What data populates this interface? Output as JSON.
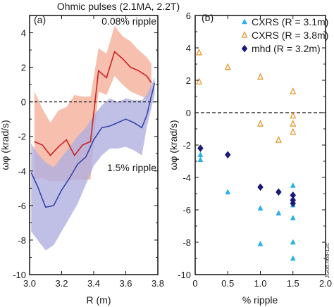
{
  "chart_data": [
    {
      "type": "area",
      "title": "Ohmic pulses (2.1MA, 2.2T)",
      "panel_label": "(a)",
      "xlabel": "R (m)",
      "ylabel": "ωφ (krad/s)",
      "xlim": [
        3.0,
        3.8
      ],
      "ylim": [
        -10,
        5
      ],
      "xticks": [
        "3.0",
        "3.2",
        "3.4",
        "3.6",
        "3.8"
      ],
      "yticks": [
        "-10",
        "-8",
        "-6",
        "-4",
        "-2",
        "0",
        "2",
        "4"
      ],
      "zero_line": "dashed",
      "annotations": [
        {
          "text": "0.08% ripple",
          "placement": "top-right"
        },
        {
          "text": "1.5% ripple",
          "placement": "center-right"
        }
      ],
      "series": [
        {
          "name": "0.08% ripple",
          "color": "#cc2222",
          "band_color": "#f4b4a0",
          "x": [
            3.03,
            3.08,
            3.13,
            3.18,
            3.23,
            3.28,
            3.33,
            3.38,
            3.43,
            3.48,
            3.53,
            3.58,
            3.63,
            3.68,
            3.73,
            3.76
          ],
          "values": [
            -2.3,
            -2.5,
            -3.1,
            -2.6,
            -2.2,
            -3.1,
            -2.5,
            -2.3,
            1.8,
            1.4,
            2.9,
            2.5,
            2.0,
            1.8,
            1.5,
            1.1
          ],
          "upper": [
            0.6,
            -0.4,
            -1.2,
            -0.5,
            -0.3,
            0.4,
            0.3,
            0.3,
            3.1,
            2.8,
            4.4,
            3.8,
            3.5,
            3.0,
            2.6,
            2.2
          ],
          "lower": [
            -4.5,
            -4.4,
            -4.6,
            -4.6,
            -4.6,
            -4.5,
            -4.5,
            -4.5,
            0.6,
            0.4,
            1.5,
            1.0,
            0.6,
            0.4,
            0.2,
            0.0
          ]
        },
        {
          "name": "1.5% ripple",
          "color": "#3344aa",
          "band_color": "#b0b0e0",
          "x": [
            3.01,
            3.05,
            3.1,
            3.15,
            3.2,
            3.25,
            3.3,
            3.35,
            3.4,
            3.45,
            3.5,
            3.55,
            3.6,
            3.65,
            3.7,
            3.73,
            3.78
          ],
          "values": [
            -4.1,
            -4.9,
            -6.1,
            -6.0,
            -5.1,
            -4.4,
            -3.6,
            -3.2,
            -2.2,
            -1.5,
            -1.4,
            -1.2,
            -1.0,
            -1.2,
            -1.5,
            -0.8,
            1.1
          ],
          "upper": [
            -2.4,
            -3.0,
            -3.5,
            -3.8,
            -3.2,
            -2.6,
            -2.0,
            -1.5,
            -0.8,
            -0.2,
            0.2,
            0.0,
            0.2,
            0.1,
            0.1,
            0.4,
            1.4
          ],
          "lower": [
            -7.5,
            -8.0,
            -8.6,
            -8.3,
            -7.5,
            -6.7,
            -5.9,
            -4.8,
            -3.7,
            -3.1,
            -2.7,
            -2.7,
            -2.6,
            -2.8,
            -3.1,
            -1.5,
            0.4
          ]
        }
      ]
    },
    {
      "type": "scatter",
      "panel_label": "(b)",
      "xlabel": "% ripple",
      "ylabel": "ωφ (krad/s)",
      "xlim": [
        0.0,
        2.0
      ],
      "ylim": [
        -10,
        6
      ],
      "xticks": [
        "0",
        "0.5",
        "1.0",
        "1.5",
        "2.0"
      ],
      "yticks": [
        "-10",
        "-8",
        "-6",
        "-4",
        "-2",
        "0",
        "2",
        "4",
        "6"
      ],
      "zero_line": "dashed",
      "legend_placement": "top-right",
      "series": [
        {
          "name": "CXRS (R = 3.1m)",
          "marker": "filled-triangle",
          "color": "#2ab0e8",
          "x": [
            0.08,
            0.08,
            0.5,
            1.0,
            1.0,
            1.28,
            1.5,
            1.5,
            1.5,
            1.5,
            1.5
          ],
          "values": [
            -2.6,
            -2.9,
            -4.9,
            -5.9,
            -8.1,
            -6.2,
            -4.5,
            -5.7,
            -6.5,
            -8.0,
            -9.0
          ]
        },
        {
          "name": "CXRS (R = 3.8m)",
          "marker": "open-triangle",
          "color": "#e89020",
          "x": [
            0.06,
            0.06,
            0.5,
            1.0,
            1.0,
            1.28,
            1.5,
            1.5,
            1.5,
            1.5
          ],
          "values": [
            3.7,
            1.9,
            2.8,
            2.2,
            -0.7,
            -1.7,
            1.3,
            -0.2,
            -0.7,
            -1.2
          ]
        },
        {
          "name": "mhd (R = 3.2m)",
          "marker": "filled-diamond",
          "color": "#1a1a7a",
          "x": [
            0.08,
            0.5,
            1.0,
            1.28,
            1.5,
            1.5,
            1.5
          ],
          "values": [
            -2.2,
            -2.6,
            -4.6,
            -4.9,
            -5.1,
            -5.4,
            -5.6
          ]
        }
      ]
    }
  ],
  "figure_id": "JG08.468-12c"
}
